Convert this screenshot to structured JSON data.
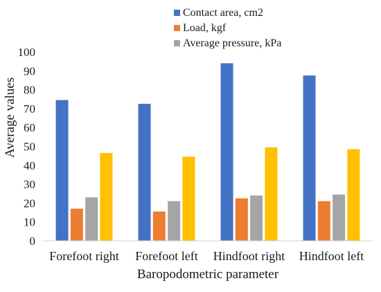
{
  "chart_data": {
    "type": "bar",
    "categories": [
      "Forefoot right",
      "Forefoot left",
      "Hindfoot right",
      "Hindfoot left"
    ],
    "series": [
      {
        "name": "Contact area, cm2",
        "values": [
          74.5,
          72.5,
          94,
          87.5
        ],
        "color": "#4472C4"
      },
      {
        "name": "Load, kgf",
        "values": [
          17,
          15.5,
          22.5,
          21
        ],
        "color": "#ED7D31"
      },
      {
        "name": "Average pressure, kPa",
        "values": [
          23,
          21,
          24,
          24.5
        ],
        "color": "#A5A5A5"
      },
      {
        "name": "",
        "values": [
          46.5,
          44.5,
          49.5,
          48.5
        ],
        "color": "#FFC000"
      }
    ],
    "xlabel": "Baropodometric parameter",
    "ylabel": "Average values",
    "ylim": [
      0,
      100
    ],
    "yticks": [
      0,
      10,
      20,
      30,
      40,
      50,
      60,
      70,
      80,
      90,
      100
    ],
    "grid": false,
    "legend": "top-center"
  }
}
